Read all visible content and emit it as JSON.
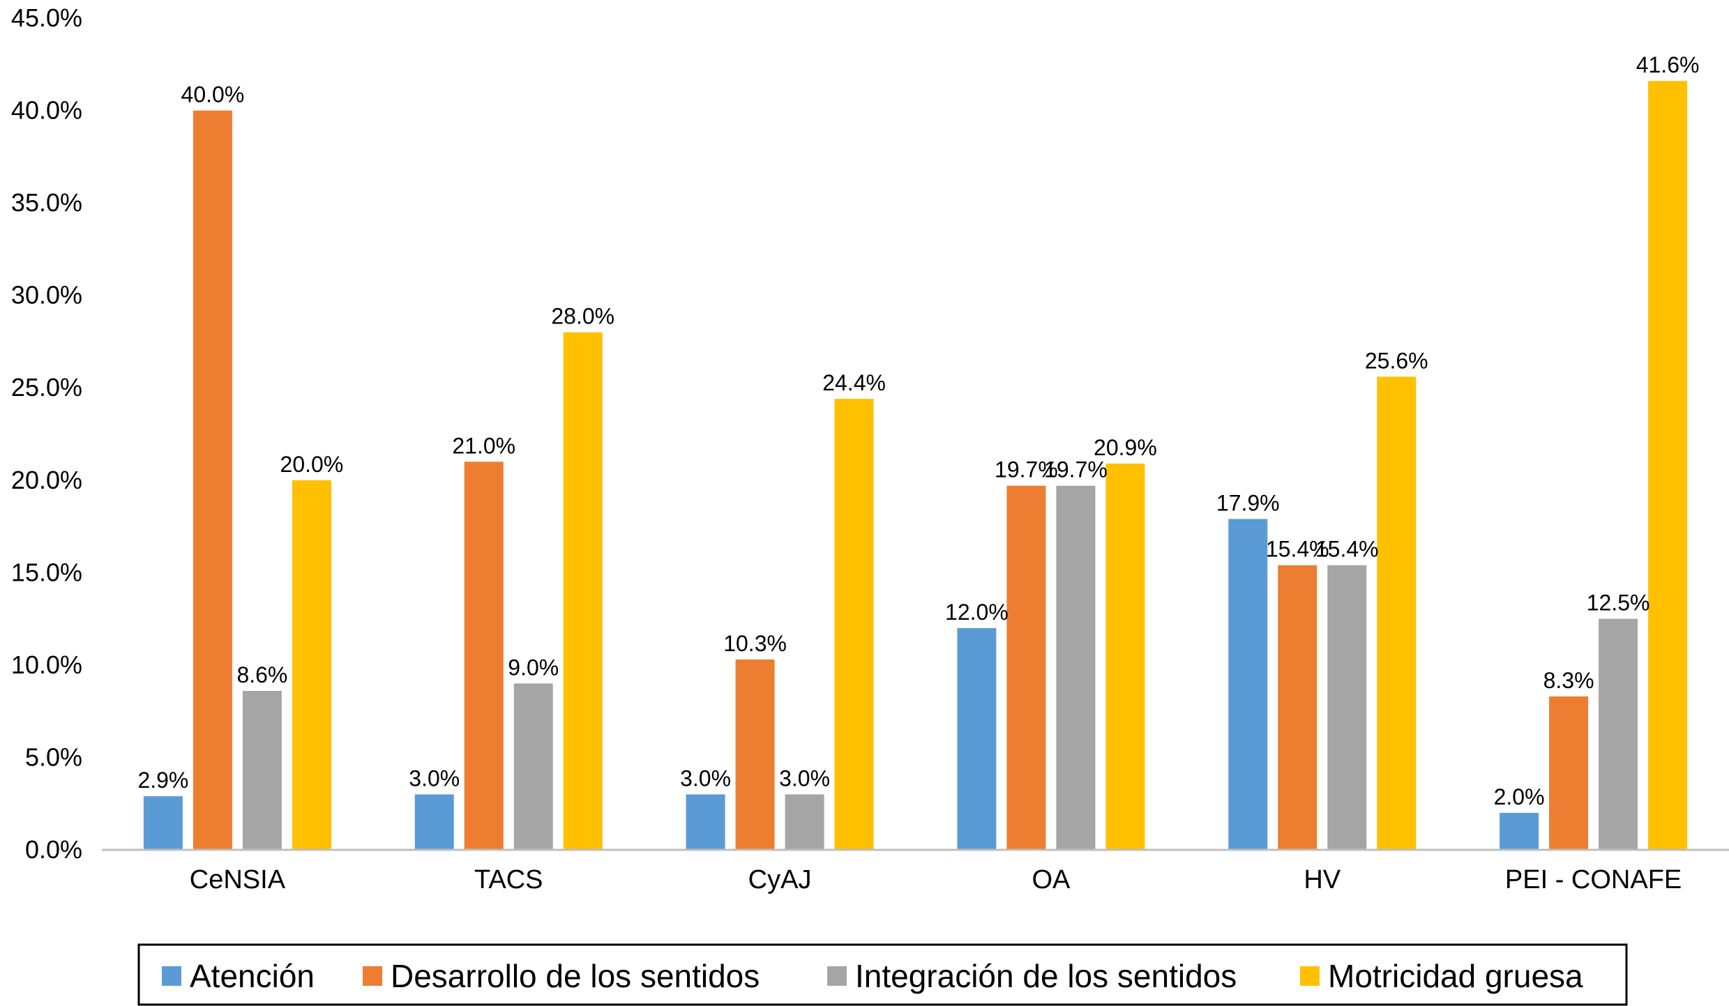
{
  "chart_data": {
    "type": "bar",
    "title": "",
    "xlabel": "",
    "ylabel": "",
    "ylim": [
      0,
      45
    ],
    "ytick_step": 5,
    "ytick_format": "percent_1dp",
    "categories": [
      "CeNSIA",
      "TACS",
      "CyAJ",
      "OA",
      "HV",
      "PEI - CONAFE"
    ],
    "series": [
      {
        "name": "Atención",
        "color": "#5B9BD5",
        "values": [
          2.9,
          3.0,
          3.0,
          12.0,
          17.9,
          2.0
        ]
      },
      {
        "name": "Desarrollo de los sentidos",
        "color": "#ED7D31",
        "values": [
          40.0,
          21.0,
          10.3,
          19.7,
          15.4,
          8.3
        ]
      },
      {
        "name": "Integración de los sentidos",
        "color": "#A5A5A5",
        "values": [
          8.6,
          9.0,
          3.0,
          19.7,
          15.4,
          12.5
        ]
      },
      {
        "name": "Motricidad gruesa",
        "color": "#FFC000",
        "values": [
          20.0,
          28.0,
          24.4,
          20.9,
          25.6,
          41.6
        ]
      }
    ],
    "data_labels": "percent_1dp",
    "grid": false,
    "legend_position": "bottom"
  }
}
